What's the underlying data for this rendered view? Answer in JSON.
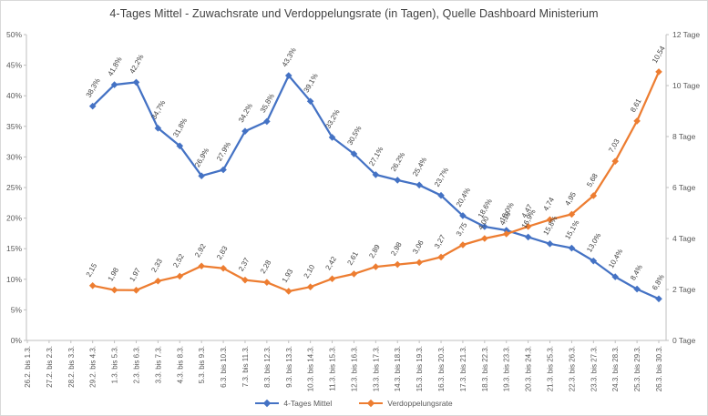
{
  "chart_data": {
    "type": "line",
    "title": "4-Tages Mittel - Zuwachsrate und Verdoppelungsrate (in Tagen), Quelle Dashboard Ministerium",
    "categories": [
      "26.2. bis 1.3.",
      "27.2. bis 2.3.",
      "28.2. bis 3.3.",
      "29.2. bis 4.3.",
      "1.3. bis 5.3.",
      "2.3. bis 6.3.",
      "3.3. bis 7.3.",
      "4.3. bis 8.3.",
      "5.3. bis 9.3.",
      "6.3. bis 10.3.",
      "7.3. bis 11.3.",
      "8.3. bis 12.3.",
      "9.3. bis 13.3.",
      "10.3. bis 14.3.",
      "11.3. bis 15.3.",
      "12.3. bis 16.3.",
      "13.3. bis 17.3.",
      "14.3. bis 18.3.",
      "15.3. bis 19.3.",
      "16.3. bis 20.3.",
      "17.3. bis 21.3.",
      "18.3. bis 22.3.",
      "19.3. bis 23.3.",
      "20.3. bis 24.3.",
      "21.3. bis 25.3.",
      "22.3. bis 26.3.",
      "23.3. bis 27.3.",
      "24.3. bis 28.3.",
      "25.3. bis 29.3.",
      "26.3. bis 30.3."
    ],
    "series": [
      {
        "name": "4-Tages Mittel",
        "axis": "left",
        "color": "#4472C4",
        "marker": "diamond",
        "values": [
          null,
          null,
          null,
          38.3,
          41.8,
          42.2,
          34.7,
          31.8,
          26.9,
          27.9,
          34.2,
          35.8,
          43.3,
          39.1,
          33.2,
          30.5,
          27.1,
          26.2,
          25.4,
          23.7,
          20.4,
          18.6,
          18.0,
          16.9,
          15.8,
          15.1,
          13.0,
          10.4,
          8.4,
          6.8
        ],
        "labels": [
          null,
          null,
          null,
          "38,3%",
          "41,8%",
          "42,2%",
          "34,7%",
          "31,8%",
          "26,9%",
          "27,9%",
          "34,2%",
          "35,8%",
          "43,3%",
          "39,1%",
          "33,2%",
          "30,5%",
          "27,1%",
          "26,2%",
          "25,4%",
          "23,7%",
          "20,4%",
          "18,6%",
          "18,0%",
          "16,9%",
          "15,8%",
          "15,1%",
          "13,0%",
          "10,4%",
          "8,4%",
          "6,8%"
        ]
      },
      {
        "name": "Verdoppelungsrate",
        "axis": "right",
        "color": "#ED7D31",
        "marker": "diamond",
        "values": [
          null,
          null,
          null,
          2.15,
          1.98,
          1.97,
          2.33,
          2.52,
          2.92,
          2.83,
          2.37,
          2.28,
          1.93,
          2.1,
          2.42,
          2.61,
          2.89,
          2.98,
          3.06,
          3.27,
          3.75,
          4.0,
          4.18,
          4.47,
          4.74,
          4.95,
          5.68,
          7.03,
          8.61,
          10.54
        ],
        "labels": [
          null,
          null,
          null,
          "2,15",
          "1,98",
          "1,97",
          "2,33",
          "2,52",
          "2,92",
          "2,83",
          "2,37",
          "2,28",
          "1,93",
          "2,10",
          "2,42",
          "2,61",
          "2,89",
          "2,98",
          "3,06",
          "3,27",
          "3,75",
          "4,00",
          "4,18",
          "4,47",
          "4,74",
          "4,95",
          "5,68",
          "7,03",
          "8,61",
          "10,54"
        ]
      }
    ],
    "left_axis": {
      "min": 0,
      "max": 50,
      "step": 5,
      "tick_labels": [
        "0%",
        "5%",
        "10%",
        "15%",
        "20%",
        "25%",
        "30%",
        "35%",
        "40%",
        "45%",
        "50%"
      ]
    },
    "right_axis": {
      "min": 0,
      "max": 12,
      "step": 2,
      "tick_labels": [
        "0 Tage",
        "2 Tage",
        "4 Tage",
        "6 Tage",
        "8 Tage",
        "10 Tage",
        "12 Tage"
      ]
    },
    "legend": {
      "position": "bottom",
      "items": [
        "4-Tages Mittel",
        "Verdoppelungsrate"
      ]
    },
    "grid": false
  },
  "styles": {
    "background": "#FFFFFF",
    "border_color": "#D9D9D9",
    "axis_line_color": "#BFBFBF",
    "axis_text_color": "#595959",
    "data_label_color": "#404040",
    "title_color": "#404040",
    "series_blue": "#4472C4",
    "series_orange": "#ED7D31"
  }
}
